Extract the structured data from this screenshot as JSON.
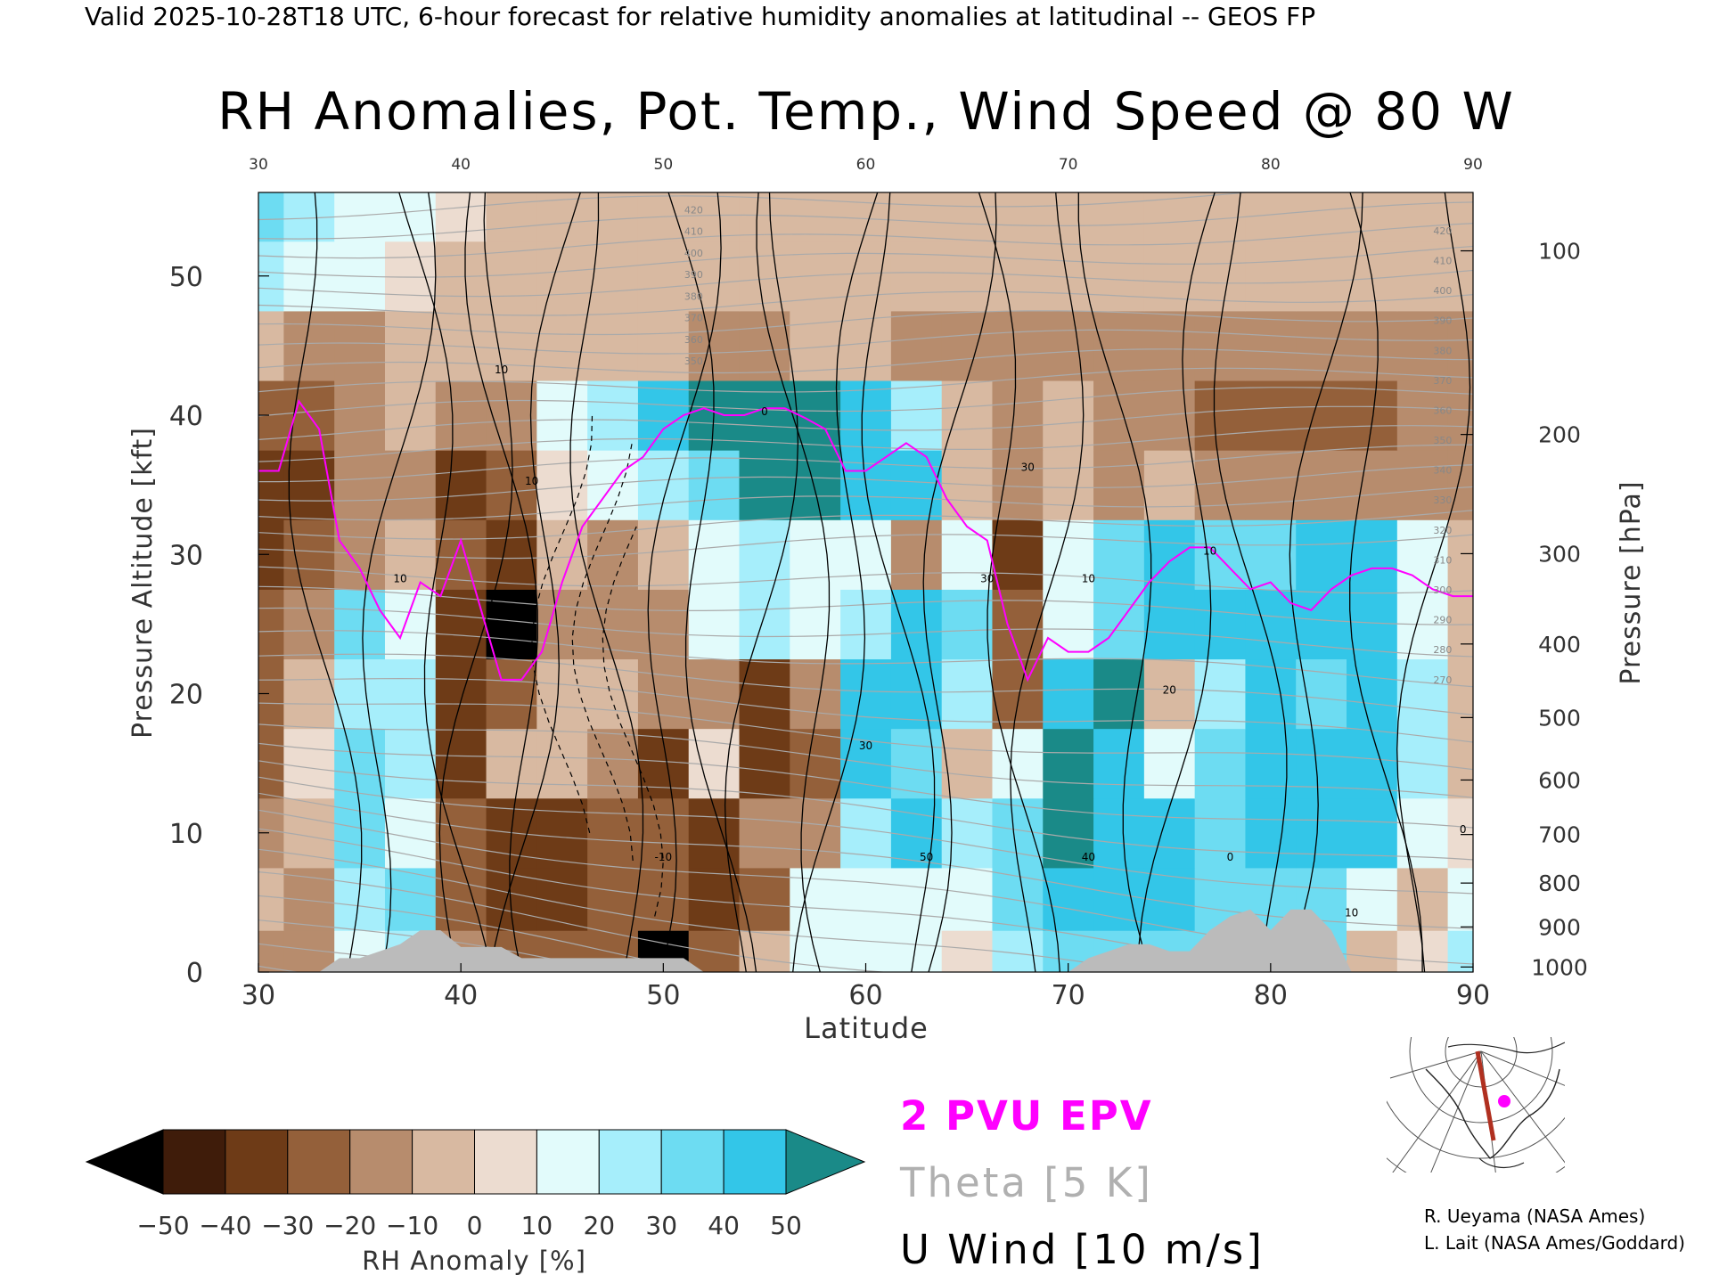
{
  "header": {
    "valid_line": "Valid 2025-10-28T18 UTC, 6-hour forecast for relative humidity anomalies at latitudinal -- GEOS FP",
    "title": "RH Anomalies, Pot. Temp., Wind Speed @ 80 W"
  },
  "colors": {
    "epv": "#ff00ff",
    "theta": "#aaaaaa",
    "wind": "#000000",
    "terrain": "#bbbbbb",
    "track": "#b03020"
  },
  "legend": {
    "epv_label": "2 PVU EPV",
    "theta_label": "Theta [5 K]",
    "wind_label": "U Wind [10 m/s]"
  },
  "colorbar": {
    "label": "RH Anomaly [%]",
    "ticks": [
      "-50",
      "-40",
      "-30",
      "-20",
      "-10",
      "0",
      "10",
      "20",
      "30",
      "40",
      "50"
    ],
    "colors": [
      "#000000",
      "#3f1c0a",
      "#6e3b17",
      "#94603a",
      "#b78c6d",
      "#d8b9a1",
      "#ecdcd0",
      "#e2fbfb",
      "#a6eefb",
      "#6ddcf2",
      "#33c6e8",
      "#0898bc",
      "#1a8a88"
    ]
  },
  "credits": {
    "line1": "R. Ueyama (NASA Ames)",
    "line2": "L. Lait (NASA Ames/Goddard)"
  },
  "inset_map": {
    "icon": "polar-map-icon",
    "description_marker": "section-track"
  },
  "chart_data": {
    "type": "heatmap",
    "title": "RH Anomalies, Pot. Temp., Wind Speed @ 80 W",
    "xlabel": "Latitude",
    "ylabel": "Pressure Altitude [kft]",
    "y2label": "Pressure [hPa]",
    "xlim": [
      30,
      90
    ],
    "ylim": [
      0,
      56
    ],
    "x_ticks": [
      "30",
      "40",
      "50",
      "60",
      "70",
      "80",
      "90"
    ],
    "y_ticks": [
      "0",
      "10",
      "20",
      "30",
      "40",
      "50"
    ],
    "pressure_ticks": [
      "100",
      "200",
      "300",
      "400",
      "500",
      "600",
      "700",
      "800",
      "900",
      "1000"
    ],
    "pressure_tick_values": [
      100,
      200,
      300,
      400,
      500,
      600,
      700,
      800,
      900,
      1000
    ],
    "theta_line_labels": [
      "420",
      "410",
      "400",
      "390",
      "380",
      "370",
      "360",
      "350",
      "340",
      "330",
      "320",
      "310",
      "300",
      "290",
      "280",
      "270"
    ],
    "anomaly_field": {
      "lat": [
        30,
        32.5,
        35,
        37.5,
        40,
        42.5,
        45,
        47.5,
        50,
        52.5,
        55,
        57.5,
        60,
        62.5,
        65,
        67.5,
        70,
        72.5,
        75,
        77.5,
        80,
        82.5,
        85,
        87.5,
        90
      ],
      "alt": [
        1,
        5,
        10,
        15,
        20,
        25,
        30,
        35,
        40,
        45,
        50,
        55
      ],
      "values": [
        [
          -20,
          -20,
          10,
          20,
          -20,
          -30,
          -30,
          -30,
          -50,
          -30,
          -10,
          10,
          10,
          10,
          0,
          20,
          30,
          30,
          30,
          30,
          30,
          30,
          -10,
          0,
          20
        ],
        [
          -10,
          -20,
          20,
          30,
          -30,
          -40,
          -40,
          -30,
          -30,
          -40,
          -30,
          10,
          10,
          10,
          10,
          30,
          40,
          40,
          40,
          30,
          30,
          30,
          10,
          -10,
          10
        ],
        [
          -20,
          -10,
          30,
          10,
          -30,
          -40,
          -40,
          -30,
          -30,
          -40,
          -20,
          -20,
          20,
          40,
          20,
          30,
          50,
          40,
          40,
          30,
          40,
          40,
          40,
          10,
          0
        ],
        [
          -30,
          0,
          30,
          20,
          -40,
          -10,
          -10,
          -20,
          -40,
          0,
          -40,
          -30,
          40,
          30,
          -10,
          10,
          50,
          40,
          10,
          30,
          40,
          40,
          40,
          20,
          -10
        ],
        [
          -30,
          -10,
          20,
          20,
          -40,
          -30,
          -10,
          -10,
          -20,
          -20,
          -40,
          -20,
          40,
          40,
          20,
          -30,
          40,
          50,
          -10,
          20,
          40,
          30,
          40,
          20,
          -10
        ],
        [
          -30,
          -20,
          30,
          10,
          -40,
          -50,
          -20,
          -20,
          -20,
          10,
          20,
          10,
          20,
          40,
          30,
          -30,
          10,
          30,
          40,
          40,
          40,
          40,
          40,
          10,
          -10
        ],
        [
          -40,
          -30,
          -20,
          -10,
          -30,
          -40,
          -10,
          -20,
          -10,
          10,
          20,
          10,
          10,
          -20,
          10,
          -40,
          10,
          30,
          40,
          30,
          30,
          40,
          40,
          10,
          -10
        ],
        [
          -40,
          -40,
          -20,
          -20,
          -40,
          -30,
          0,
          10,
          20,
          30,
          50,
          50,
          40,
          40,
          -10,
          -20,
          -10,
          -20,
          -10,
          -20,
          -20,
          -20,
          -20,
          -20,
          -20
        ],
        [
          -30,
          -30,
          -20,
          -10,
          -20,
          -20,
          10,
          20,
          40,
          50,
          50,
          50,
          40,
          20,
          -10,
          -20,
          -10,
          -20,
          -20,
          -30,
          -30,
          -30,
          -30,
          -20,
          -20
        ],
        [
          -10,
          -20,
          -20,
          -10,
          -10,
          -10,
          -10,
          -10,
          -10,
          -20,
          -20,
          -10,
          -10,
          -20,
          -20,
          -20,
          -20,
          -20,
          -20,
          -20,
          -20,
          -20,
          -20,
          -20,
          -20
        ],
        [
          20,
          10,
          10,
          0,
          -10,
          -10,
          -10,
          -10,
          -10,
          -10,
          -10,
          -10,
          -10,
          -10,
          -10,
          -10,
          -10,
          -10,
          -10,
          -10,
          -10,
          -10,
          -10,
          -10,
          -10
        ],
        [
          30,
          20,
          10,
          10,
          0,
          -10,
          -10,
          -10,
          -10,
          -10,
          -10,
          -10,
          -10,
          -10,
          -10,
          -10,
          -10,
          -10,
          -10,
          -10,
          -10,
          -10,
          -10,
          -10,
          -10
        ]
      ]
    },
    "epv_2pvu_line": {
      "lat": [
        30,
        31,
        32,
        33,
        34,
        35,
        36,
        37,
        38,
        39,
        40,
        41,
        42,
        43,
        44,
        45,
        46,
        47,
        48,
        49,
        50,
        51,
        52,
        53,
        54,
        55,
        56,
        57,
        58,
        59,
        60,
        61,
        62,
        63,
        64,
        65,
        66,
        67,
        68,
        69,
        70,
        71,
        72,
        73,
        74,
        75,
        76,
        77,
        78,
        79,
        80,
        81,
        82,
        83,
        84,
        85,
        86,
        87,
        88,
        89,
        90
      ],
      "alt": [
        36,
        36,
        41,
        39,
        31,
        29,
        26,
        24,
        28,
        27,
        31,
        26,
        21,
        21,
        23,
        28,
        32,
        34,
        36,
        37,
        39,
        40,
        40.5,
        40,
        40,
        40.5,
        40.5,
        39.8,
        39,
        36,
        36,
        37,
        38,
        37,
        34,
        32,
        31,
        25,
        21,
        24,
        23,
        23,
        24,
        26,
        28,
        29.5,
        30.5,
        30.5,
        29,
        27.5,
        28,
        26.5,
        26,
        27.5,
        28.5,
        29,
        29,
        28.5,
        27.5,
        27,
        27
      ]
    },
    "terrain_kft": {
      "lat": [
        30,
        33,
        34,
        35,
        36,
        37,
        38,
        39,
        40,
        41,
        42,
        43,
        44,
        45,
        46,
        47,
        48,
        49,
        50,
        51,
        52,
        56,
        60,
        62,
        64,
        66,
        68,
        70,
        71,
        72,
        73,
        74,
        75,
        76,
        77,
        78,
        79,
        80,
        81,
        82,
        83,
        84,
        85,
        87,
        90
      ],
      "alt": [
        0,
        0,
        1,
        1,
        1.5,
        2,
        3,
        3,
        1.8,
        1.8,
        1.8,
        1,
        1,
        1,
        1,
        1,
        1,
        1,
        1,
        1,
        0,
        0,
        0,
        0,
        0,
        0,
        0,
        0,
        1,
        1.5,
        2,
        2,
        1.5,
        1.5,
        3,
        4,
        4.5,
        3,
        4.5,
        4.5,
        3,
        0,
        0,
        0,
        0
      ]
    },
    "wind_zero_crossings_lat": [
      41,
      43,
      47,
      52,
      56,
      61,
      66,
      69
    ],
    "wind_contour_labels": [
      "10",
      "10",
      "10",
      "0",
      "-10",
      "10",
      "30",
      "30",
      "30",
      "50",
      "40",
      "20",
      "10",
      "0",
      "10",
      "0"
    ]
  }
}
